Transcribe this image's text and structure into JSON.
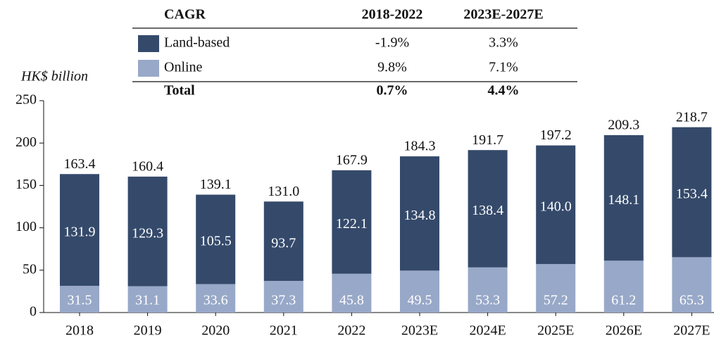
{
  "chart_data": {
    "type": "stacked_bar",
    "y_label": "HK$ billion",
    "categories": [
      "2018",
      "2019",
      "2020",
      "2021",
      "2022",
      "2023E",
      "2024E",
      "2025E",
      "2026E",
      "2027E"
    ],
    "series": [
      {
        "name": "Online",
        "color": "#98a8c8",
        "values": [
          31.5,
          31.1,
          33.6,
          37.3,
          45.8,
          49.5,
          53.3,
          57.2,
          61.2,
          65.3
        ]
      },
      {
        "name": "Land-based",
        "color": "#354a6b",
        "values": [
          131.9,
          129.3,
          105.5,
          93.7,
          122.1,
          134.8,
          138.4,
          140.0,
          148.1,
          153.4
        ],
        "value_labels": [
          "131.9",
          "129.3",
          "105.5",
          "93.7",
          "122.1",
          "134.8",
          "138.4",
          "140.0",
          "148.1",
          "153.4"
        ]
      }
    ],
    "totals": [
      163.4,
      160.4,
      139.1,
      131.0,
      167.9,
      184.3,
      191.7,
      197.2,
      209.3,
      218.7
    ],
    "total_labels": [
      "163.4",
      "160.4",
      "139.1",
      "131.0",
      "167.9",
      "184.3",
      "191.7",
      "197.2",
      "209.3",
      "218.7"
    ],
    "ylim": [
      0,
      250
    ],
    "yticks": [
      0,
      50,
      100,
      150,
      200,
      250
    ],
    "cagr_table": {
      "header": [
        "CAGR",
        "2018-2022",
        "2023E-2027E"
      ],
      "rows": [
        [
          "-1.9%",
          "3.3%"
        ],
        [
          "9.8%",
          "7.1%"
        ]
      ],
      "total": [
        "Total",
        "0.7%",
        "4.4%"
      ]
    }
  }
}
